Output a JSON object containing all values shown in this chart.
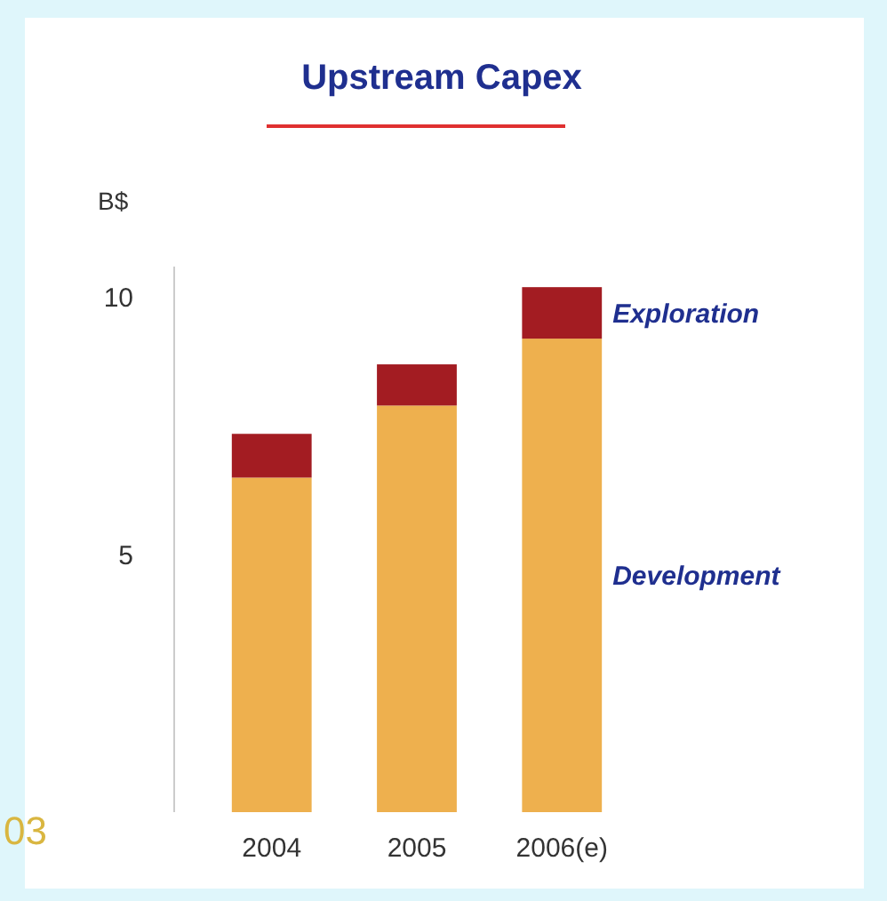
{
  "chart_data": {
    "type": "bar",
    "title": "Upstream Capex",
    "ylabel": "B$",
    "categories": [
      "2004",
      "2005",
      "2006(e)"
    ],
    "stacked": true,
    "series": [
      {
        "name": "Development",
        "color": "#eeb04e",
        "values": [
          6.5,
          7.9,
          9.2
        ]
      },
      {
        "name": "Exploration",
        "color": "#a31c22",
        "values": [
          0.85,
          0.8,
          1.0
        ]
      }
    ],
    "ylim": [
      0,
      10.6
    ],
    "yticks": [
      5,
      10
    ],
    "grid": false,
    "legend": false,
    "annotations": [
      "03"
    ]
  }
}
